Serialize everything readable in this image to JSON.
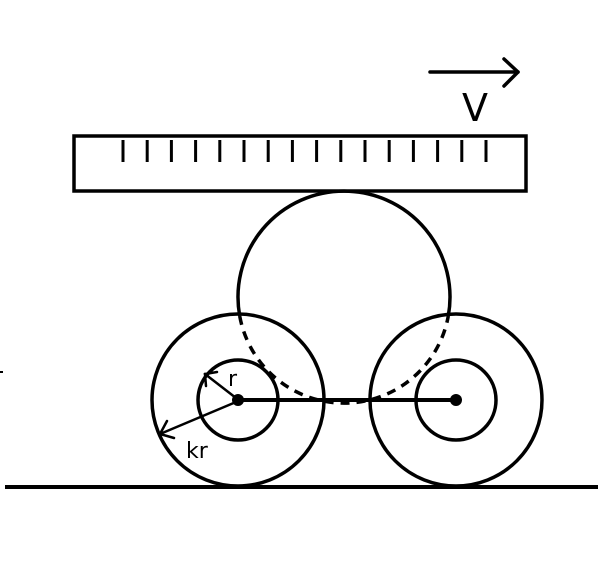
{
  "labels": {
    "velocity": "V",
    "inner_radius": "r",
    "outer_radius": "kr"
  },
  "colors": {
    "stroke": "#000000",
    "background": "#ffffff"
  }
}
